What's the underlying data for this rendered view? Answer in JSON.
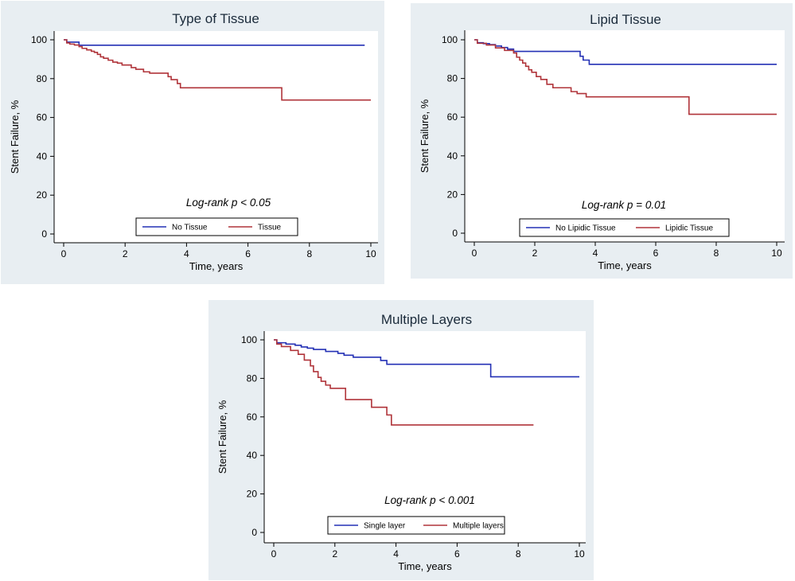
{
  "chart_data": [
    {
      "type": "line",
      "title": "Type of Tissue",
      "xlabel": "Time, years",
      "ylabel": "Stent Failure, %",
      "xlim": [
        0,
        10
      ],
      "ylim": [
        0,
        100
      ],
      "xticks": [
        0,
        2,
        4,
        6,
        8,
        10
      ],
      "yticks": [
        0,
        20,
        40,
        60,
        80,
        100
      ],
      "annotation": "Log-rank p < 0.05",
      "series": [
        {
          "name": "No Tissue",
          "color": "#2431b5",
          "x": [
            0,
            0.1,
            0.5,
            9.8
          ],
          "y": [
            100,
            98.8,
            97.2,
            97.2
          ]
        },
        {
          "name": "Tissue",
          "color": "#b0343a",
          "x": [
            0,
            0.1,
            0.2,
            0.35,
            0.5,
            0.6,
            0.75,
            0.9,
            1.0,
            1.1,
            1.2,
            1.3,
            1.45,
            1.6,
            1.75,
            1.9,
            2.2,
            2.35,
            2.6,
            2.8,
            3.4,
            3.5,
            3.7,
            3.8,
            7.1,
            10
          ],
          "y": [
            100,
            98.4,
            97.8,
            97.3,
            96.5,
            95.6,
            94.8,
            94.1,
            93.5,
            92.5,
            91.2,
            90.5,
            89.5,
            88.5,
            88.0,
            87.0,
            85.7,
            84.8,
            83.5,
            82.8,
            81.0,
            79.5,
            77.5,
            75.3,
            69.0,
            69.0
          ]
        }
      ]
    },
    {
      "type": "line",
      "title": "Lipid Tissue",
      "xlabel": "Time, years",
      "ylabel": "Stent Failure, %",
      "xlim": [
        0,
        10
      ],
      "ylim": [
        0,
        100
      ],
      "xticks": [
        0,
        2,
        4,
        6,
        8,
        10
      ],
      "yticks": [
        0,
        20,
        40,
        60,
        80,
        100
      ],
      "annotation": "Log-rank p = 0.01",
      "series": [
        {
          "name": "No Lipidic Tissue",
          "color": "#2431b5",
          "x": [
            0,
            0.1,
            0.3,
            0.5,
            0.7,
            0.9,
            1.1,
            1.3,
            3.3,
            3.5,
            3.6,
            3.8,
            10
          ],
          "y": [
            100,
            98.5,
            98.0,
            97.5,
            96.8,
            96.0,
            95.2,
            94.0,
            94.0,
            91.5,
            89.5,
            87.3,
            87.3
          ]
        },
        {
          "name": "Lipidic Tissue",
          "color": "#b0343a",
          "x": [
            0,
            0.1,
            0.4,
            0.7,
            1.0,
            1.3,
            1.4,
            1.5,
            1.6,
            1.7,
            1.8,
            1.9,
            2.05,
            2.2,
            2.4,
            2.6,
            3.2,
            3.4,
            3.7,
            7.1,
            10
          ],
          "y": [
            100,
            98.2,
            97.3,
            95.8,
            94.5,
            93.2,
            91.0,
            89.5,
            88.0,
            86.3,
            84.5,
            83.2,
            81.0,
            79.5,
            77.0,
            75.2,
            73.2,
            72.2,
            70.5,
            61.5,
            61.5
          ]
        }
      ]
    },
    {
      "type": "line",
      "title": "Multiple Layers",
      "xlabel": "Time, years",
      "ylabel": "Stent Failure, %",
      "xlim": [
        0,
        10
      ],
      "ylim": [
        0,
        100
      ],
      "xticks": [
        0,
        2,
        4,
        6,
        8,
        10
      ],
      "yticks": [
        0,
        20,
        40,
        60,
        80,
        100
      ],
      "annotation": "Log-rank p < 0.001",
      "series": [
        {
          "name": "Single layer",
          "color": "#2431b5",
          "x": [
            0,
            0.1,
            0.4,
            0.7,
            0.9,
            1.1,
            1.3,
            1.7,
            2.1,
            2.3,
            2.6,
            3.5,
            3.7,
            7.1,
            10
          ],
          "y": [
            100,
            98.5,
            97.8,
            97.2,
            96.3,
            95.7,
            95.0,
            94.0,
            93.0,
            92.0,
            91.0,
            89.3,
            87.3,
            80.8,
            80.8
          ]
        },
        {
          "name": "Multiple layers",
          "color": "#b0343a",
          "x": [
            0,
            0.1,
            0.25,
            0.55,
            0.8,
            1.0,
            1.2,
            1.3,
            1.45,
            1.55,
            1.7,
            1.85,
            2.35,
            3.2,
            3.7,
            3.85,
            8.5
          ],
          "y": [
            100,
            97.8,
            96.5,
            94.5,
            92.5,
            89.5,
            86.5,
            83.5,
            80.5,
            78.5,
            76.5,
            74.8,
            69.0,
            65.0,
            61.0,
            55.8,
            55.8
          ]
        }
      ]
    }
  ]
}
